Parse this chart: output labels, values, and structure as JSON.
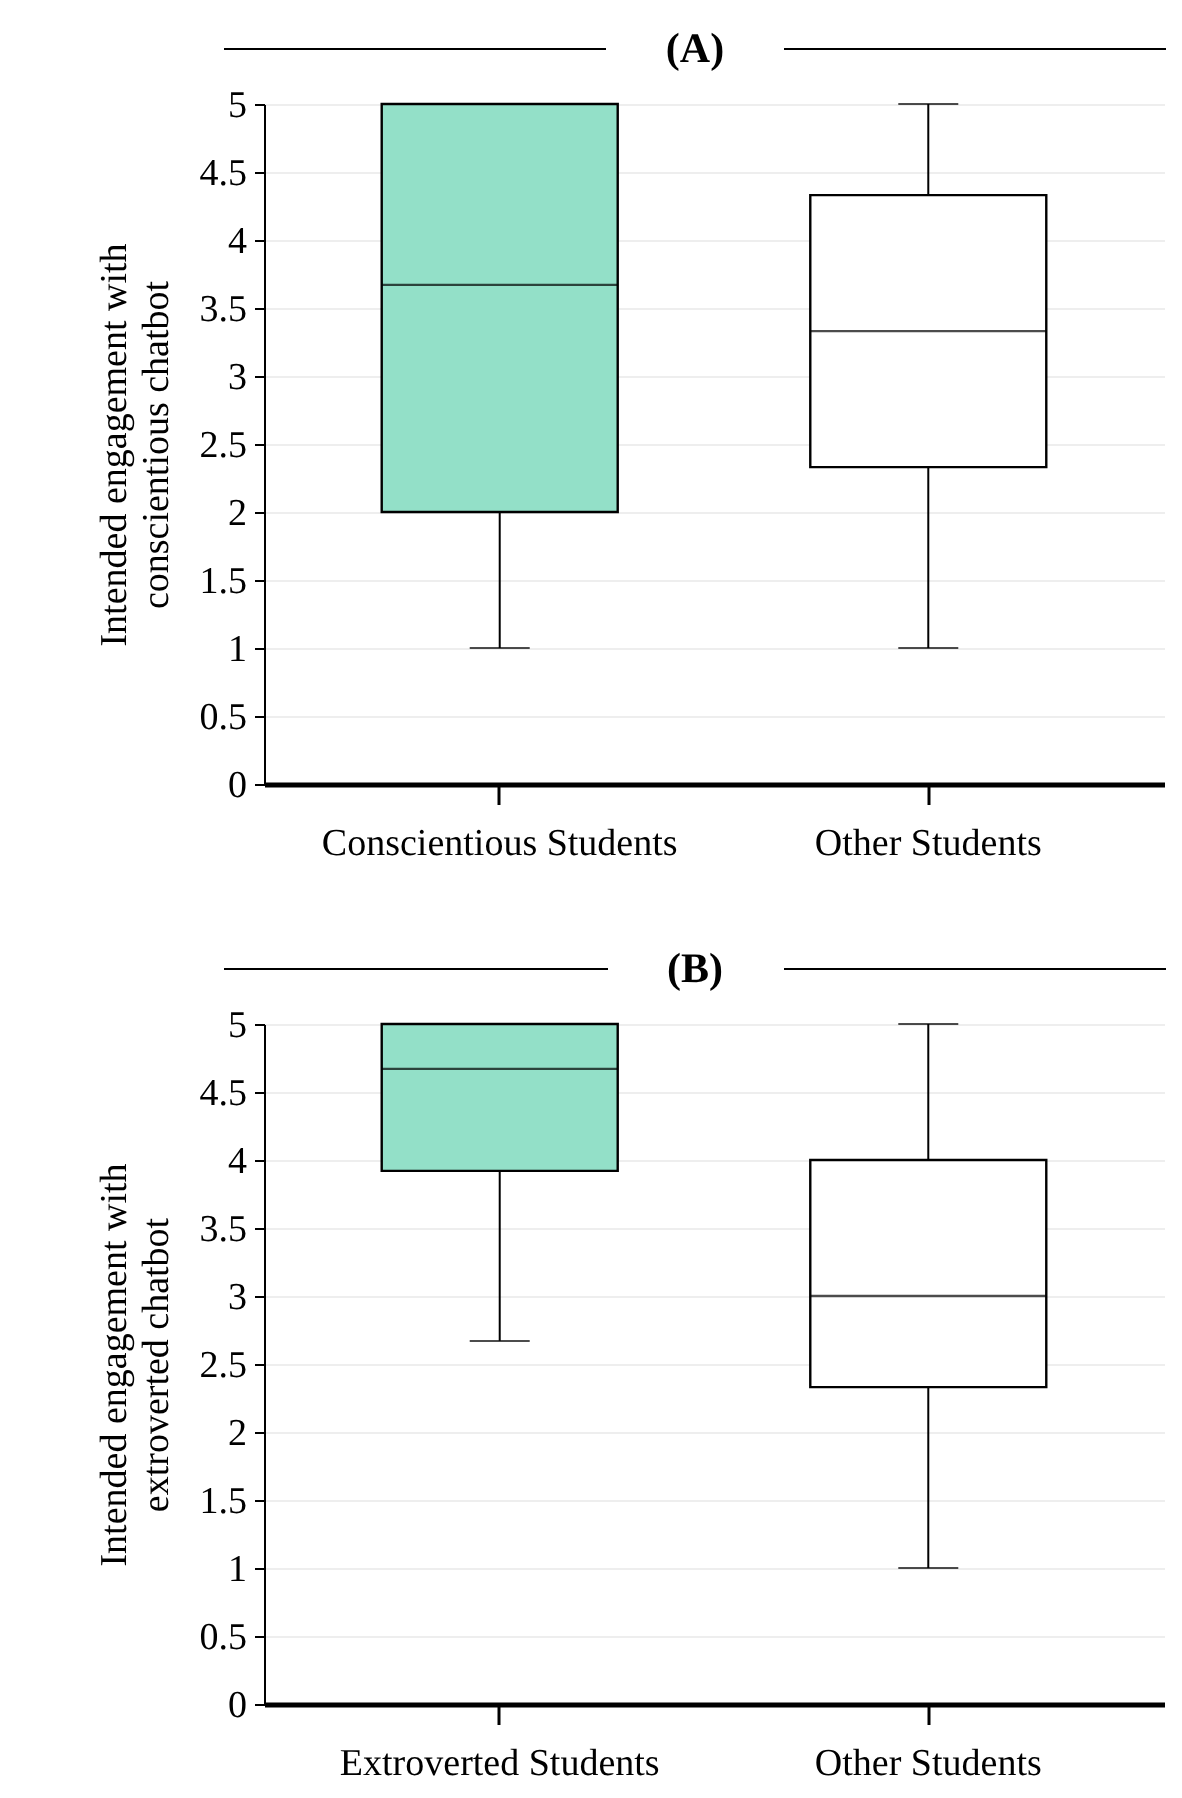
{
  "chart_data": [
    {
      "type": "box",
      "title": "(A)",
      "ylabel": "Intended engagement with conscientious chatbot",
      "categories": [
        "Conscientious Students",
        "Other Students"
      ],
      "colors": [
        "#93e0c8",
        "#ffffff"
      ],
      "boxes": [
        {
          "low": 1,
          "q1": 2,
          "median": 3.67,
          "q3": 5,
          "high": 5
        },
        {
          "low": 1,
          "q1": 2.33,
          "median": 3.33,
          "q3": 4.33,
          "high": 5
        }
      ],
      "ylim": [
        0,
        5
      ],
      "yticks": [
        0,
        0.5,
        1,
        1.5,
        2,
        2.5,
        3,
        3.5,
        4,
        4.5,
        5
      ],
      "grid": "y"
    },
    {
      "type": "box",
      "title": "(B)",
      "ylabel": "Intended engagement with extroverted chatbot",
      "categories": [
        "Extroverted Students",
        "Other Students"
      ],
      "colors": [
        "#93e0c8",
        "#ffffff"
      ],
      "boxes": [
        {
          "low": 2.67,
          "q1": 3.92,
          "median": 4.67,
          "q3": 5,
          "high": 5
        },
        {
          "low": 1,
          "q1": 2.33,
          "median": 3,
          "q3": 4,
          "high": 5
        }
      ],
      "ylim": [
        0,
        5
      ],
      "yticks": [
        0,
        0.5,
        1,
        1.5,
        2,
        2.5,
        3,
        3.5,
        4,
        4.5,
        5
      ],
      "grid": "y"
    }
  ]
}
